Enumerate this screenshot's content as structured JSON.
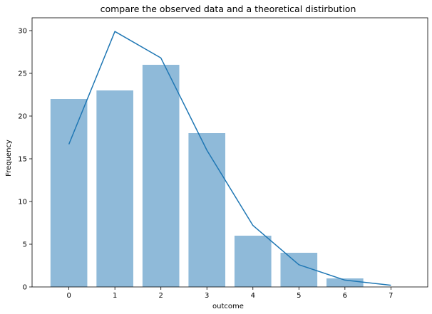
{
  "chart_data": {
    "type": "bar",
    "title": "compare the observed data and a theoretical distirbution",
    "xlabel": "outcome",
    "ylabel": "Frequency",
    "xlim": [
      -0.8,
      7.8
    ],
    "ylim": [
      0,
      31.5
    ],
    "xticks": [
      0,
      1,
      2,
      3,
      4,
      5,
      6,
      7
    ],
    "yticks": [
      0,
      5,
      10,
      15,
      20,
      25,
      30
    ],
    "grid": false,
    "bar_color": "#8fbad9",
    "line_color": "#1f77b4",
    "series": [
      {
        "type": "bar",
        "x": [
          0,
          1,
          2,
          3,
          4,
          5,
          6
        ],
        "values": [
          22,
          23,
          26,
          18,
          6,
          4,
          1
        ]
      },
      {
        "type": "line",
        "x": [
          0,
          1,
          2,
          3,
          4,
          5,
          6,
          7
        ],
        "values": [
          16.7,
          29.9,
          26.8,
          16.0,
          7.2,
          2.6,
          0.8,
          0.2
        ]
      }
    ]
  }
}
